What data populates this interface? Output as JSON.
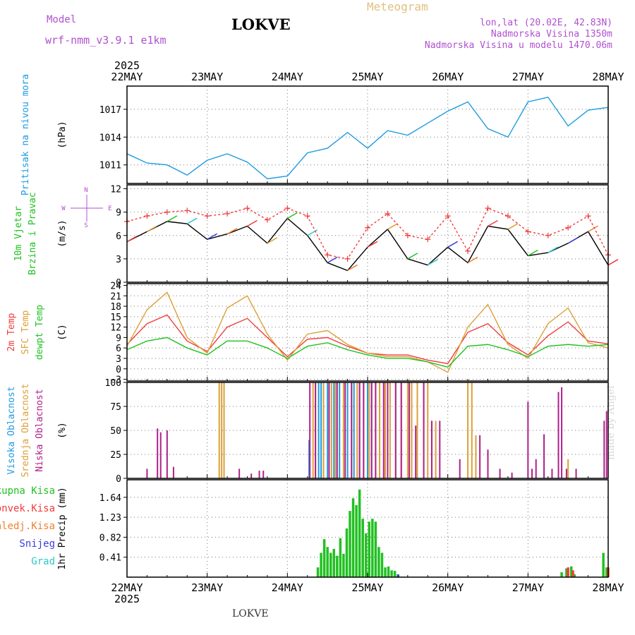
{
  "header": {
    "model_label": "Model",
    "model_name": "wrf-nmm_v3.9.1 e1km",
    "station": "LOKVE",
    "product": "Meteogram",
    "lonlat": "lon,lat (20.02E, 42.83N)",
    "elevation": "Nadmorska Visina 1350m",
    "model_elevation": "Nadmorska Visina u modelu 1470.06m",
    "footer_station": "LOKVE",
    "watermark": "made by Angel"
  },
  "colors": {
    "pressure": "#1e9be0",
    "temp2m": "#f03c3c",
    "sfc": "#dca038",
    "dewpt": "#22c022",
    "high_cloud": "#1e9be0",
    "mid_cloud": "#dca038",
    "low_cloud": "#b0208a",
    "total_precip": "#22c022",
    "conv_precip": "#f03c3c",
    "freezing": "#f08030",
    "snow": "#3c3cdc",
    "grad": "#30c8c8",
    "violet": "#b050d0"
  },
  "time_axis": {
    "year": "2025",
    "days": [
      "22MAY",
      "23MAY",
      "24MAY",
      "25MAY",
      "26MAY",
      "27MAY",
      "28MAY"
    ]
  },
  "chart_data": [
    {
      "type": "line",
      "panel": "pressure",
      "ylabel_side": "Pritisak na nivou mora",
      "ylabel": "(hPa)",
      "y_ticks": [
        "1011",
        "1014",
        "1017"
      ],
      "ylim": [
        1009,
        1019.5
      ],
      "x": [
        0,
        0.25,
        0.5,
        0.75,
        1,
        1.25,
        1.5,
        1.75,
        2,
        2.25,
        2.5,
        2.75,
        3,
        3.25,
        3.5,
        3.75,
        4,
        4.25,
        4.5,
        4.75,
        5,
        5.25,
        5.5,
        5.75,
        6
      ],
      "series": [
        {
          "name": "Pritisak na nivou mora",
          "values": [
            1012.2,
            1011.2,
            1011.0,
            1009.9,
            1011.5,
            1012.2,
            1011.3,
            1009.5,
            1009.8,
            1012.3,
            1012.8,
            1014.5,
            1012.8,
            1014.7,
            1014.2,
            1015.5,
            1016.8,
            1017.8,
            1014.9,
            1014.0,
            1017.8,
            1018.3,
            1015.2,
            1016.9,
            1017.2
          ]
        }
      ]
    },
    {
      "type": "line",
      "panel": "wind",
      "ylabel_side": [
        "10m Vjetar",
        "Brzina i Pravac"
      ],
      "ylabel": "(m/s)",
      "compass": {
        "w": "W",
        "e": "E",
        "n": "N",
        "s": "S"
      },
      "y_ticks": [
        "0",
        "3",
        "6",
        "9",
        "12"
      ],
      "ylim": [
        0,
        12.5
      ],
      "x": [
        0,
        0.25,
        0.5,
        0.75,
        1,
        1.25,
        1.5,
        1.75,
        2,
        2.25,
        2.5,
        2.75,
        3,
        3.25,
        3.5,
        3.75,
        4,
        4.25,
        4.5,
        4.75,
        5,
        5.25,
        5.5,
        5.75,
        6
      ],
      "series": [
        {
          "name": "10m Vjetar",
          "values": [
            5.2,
            6.5,
            7.8,
            7.5,
            5.5,
            6.2,
            7.2,
            5.0,
            8.2,
            6.0,
            2.5,
            1.5,
            4.5,
            6.8,
            3.0,
            2.2,
            4.5,
            2.5,
            7.2,
            6.8,
            3.4,
            3.8,
            5.0,
            6.5,
            2.2
          ]
        },
        {
          "name": "Udari",
          "values": [
            7.8,
            8.5,
            9.0,
            9.2,
            8.5,
            8.8,
            9.5,
            8.0,
            9.5,
            8.5,
            3.5,
            3.0,
            7.0,
            8.8,
            6.0,
            5.5,
            8.5,
            4.0,
            9.5,
            8.5,
            6.5,
            6.0,
            7.0,
            8.5,
            3.5
          ]
        }
      ]
    },
    {
      "type": "line",
      "panel": "temperature",
      "ylabel_side": [
        "2m Temp",
        "SFC Temp",
        "dewpt Temp"
      ],
      "ylabel": "(C)",
      "y_ticks": [
        "−3",
        "0",
        "3",
        "6",
        "9",
        "12",
        "15",
        "18",
        "21",
        "24"
      ],
      "ylim": [
        -3.5,
        24.5
      ],
      "x": [
        0,
        0.25,
        0.5,
        0.75,
        1,
        1.25,
        1.5,
        1.75,
        2,
        2.25,
        2.5,
        2.75,
        3,
        3.25,
        3.5,
        3.75,
        4,
        4.25,
        4.5,
        4.75,
        5,
        5.25,
        5.5,
        5.75,
        6
      ],
      "series": [
        {
          "name": "2m Temp",
          "values": [
            7.0,
            13.0,
            15.5,
            8.0,
            5.0,
            12.0,
            14.5,
            9.0,
            3.5,
            8.5,
            9.0,
            6.5,
            4.5,
            4.0,
            4.0,
            2.5,
            1.5,
            10.5,
            13.0,
            7.5,
            4.0,
            9.5,
            13.5,
            8.0,
            7.2
          ]
        },
        {
          "name": "SFC Temp",
          "values": [
            6.5,
            17.0,
            22.0,
            9.0,
            4.5,
            17.5,
            21.0,
            10.0,
            2.5,
            10.0,
            11.0,
            7.0,
            4.5,
            3.5,
            3.5,
            2.0,
            -1.0,
            12.0,
            18.5,
            7.0,
            3.0,
            13.0,
            17.5,
            7.5,
            6.0
          ]
        },
        {
          "name": "dewpt Temp",
          "values": [
            5.5,
            8.0,
            9.0,
            6.0,
            4.0,
            8.0,
            8.0,
            6.0,
            3.0,
            6.5,
            7.5,
            5.5,
            4.0,
            3.0,
            3.0,
            2.0,
            0.5,
            6.5,
            7.0,
            5.5,
            3.5,
            6.5,
            7.0,
            6.5,
            7.0
          ]
        }
      ]
    },
    {
      "type": "bar",
      "panel": "clouds",
      "ylabel_side": [
        "Visoka Oblacnost",
        "Srednja Oblacnost",
        "Niska Oblacnost"
      ],
      "ylabel": "(%)",
      "y_ticks": [
        "0",
        "25",
        "50",
        "75",
        "100"
      ],
      "ylim": [
        0,
        100
      ],
      "series": [
        {
          "name": "Visoka Oblacnost",
          "x": [
            2.27,
            2.39,
            2.42,
            2.45,
            2.5,
            2.58,
            2.65,
            2.75,
            2.83,
            2.9,
            3.0,
            3.05
          ],
          "values": [
            40,
            100,
            100,
            100,
            100,
            100,
            100,
            100,
            100,
            100,
            100,
            100
          ]
        },
        {
          "name": "Srednja Oblacnost",
          "x": [
            1.15,
            1.18,
            1.21,
            2.32,
            2.35,
            2.45,
            2.55,
            2.6,
            2.7,
            2.8,
            2.87,
            2.95,
            3.02,
            3.1,
            3.15,
            3.22,
            3.28,
            3.35,
            3.42,
            3.5,
            3.55,
            3.62,
            3.7,
            3.75,
            3.8,
            3.85,
            4.25,
            4.3,
            4.35,
            5.5
          ],
          "values": [
            100,
            100,
            100,
            100,
            100,
            100,
            100,
            100,
            100,
            100,
            100,
            100,
            100,
            100,
            100,
            100,
            100,
            100,
            100,
            100,
            100,
            100,
            100,
            100,
            60,
            60,
            100,
            100,
            45,
            20
          ]
        },
        {
          "name": "Niska Oblacnost",
          "x": [
            0.25,
            0.38,
            0.42,
            0.5,
            0.58,
            1.4,
            1.55,
            1.65,
            1.7,
            2.28,
            2.35,
            2.52,
            2.62,
            2.72,
            2.8,
            2.9,
            2.95,
            3.05,
            3.1,
            3.2,
            3.25,
            3.35,
            3.42,
            3.52,
            3.6,
            3.7,
            3.8,
            3.9,
            4.15,
            4.4,
            4.5,
            4.65,
            4.8,
            5.0,
            5.05,
            5.1,
            5.2,
            5.3,
            5.38,
            5.42,
            5.48,
            5.6,
            5.95,
            5.98
          ],
          "values": [
            10,
            52,
            48,
            50,
            12,
            10,
            5,
            8,
            8,
            100,
            100,
            100,
            100,
            100,
            100,
            100,
            100,
            100,
            100,
            100,
            100,
            100,
            100,
            100,
            55,
            100,
            60,
            60,
            20,
            45,
            30,
            10,
            6,
            80,
            10,
            20,
            46,
            10,
            90,
            95,
            10,
            10,
            60,
            70
          ]
        }
      ]
    },
    {
      "type": "bar",
      "panel": "precip",
      "ylabel_side": [
        "Ukupna Kisa",
        "Konvek.Kisa",
        "Zaledj.Kisa",
        "Snijeg",
        "Grad"
      ],
      "ylabel": "1hr Precip (mm)",
      "y_ticks": [
        "0.41",
        "0.82",
        "1.23",
        "1.64"
      ],
      "ylim": [
        0,
        2.0
      ],
      "series": [
        {
          "name": "Ukupna Kisa",
          "x": [
            2.38,
            2.42,
            2.46,
            2.5,
            2.54,
            2.58,
            2.62,
            2.66,
            2.7,
            2.74,
            2.78,
            2.82,
            2.86,
            2.9,
            2.94,
            2.98,
            3.02,
            3.06,
            3.1,
            3.14,
            3.18,
            3.22,
            3.26,
            3.3,
            3.34,
            3.38,
            5.42,
            5.48,
            5.54,
            5.58,
            5.94,
            5.98
          ],
          "values": [
            0.2,
            0.5,
            0.78,
            0.62,
            0.5,
            0.58,
            0.44,
            0.8,
            0.48,
            1.0,
            1.36,
            1.62,
            1.48,
            1.8,
            1.2,
            0.9,
            1.14,
            1.2,
            1.14,
            0.62,
            0.5,
            0.2,
            0.22,
            0.14,
            0.13,
            0.06,
            0.1,
            0.18,
            0.22,
            0.06,
            0.5,
            0.2
          ]
        },
        {
          "name": "Konvek.Kisa",
          "x": [
            5.5,
            5.56,
            6.0
          ],
          "values": [
            0.2,
            0.14,
            0.2
          ]
        },
        {
          "name": "Snijeg",
          "x": [
            3.38
          ],
          "values": [
            0.05
          ]
        }
      ]
    }
  ]
}
